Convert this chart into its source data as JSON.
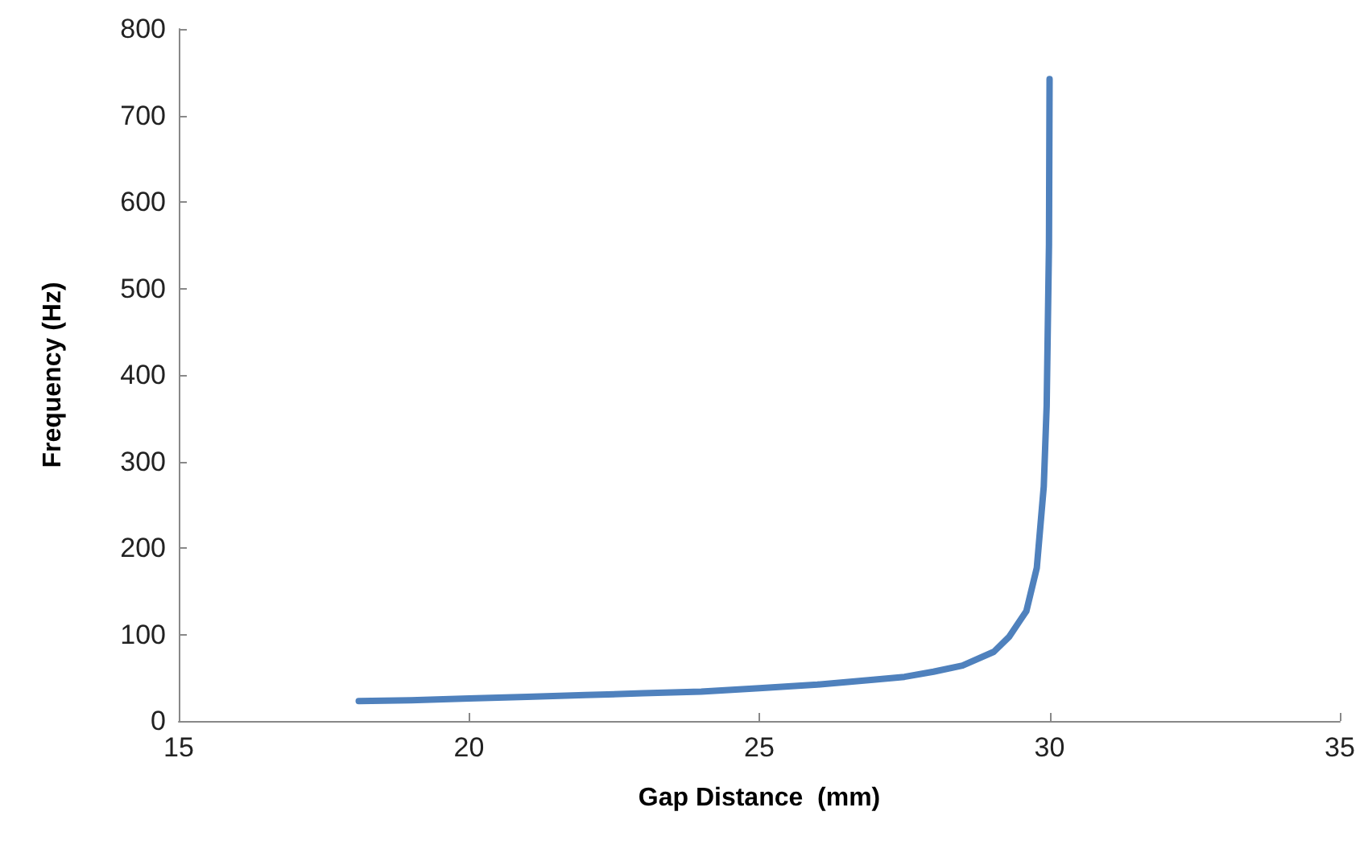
{
  "chart_data": {
    "type": "line",
    "xlabel": "Gap Distance  (mm)",
    "ylabel": "Frequency (Hz)",
    "x": [
      18.1,
      19,
      20,
      21,
      22,
      23,
      24,
      25,
      26,
      27,
      27.5,
      28,
      28.5,
      29.04,
      29.3,
      29.6,
      29.78,
      29.9,
      29.95,
      29.99,
      30
    ],
    "series": [
      {
        "color": "#4f81bd",
        "values": [
          23,
          24,
          26,
          28,
          30,
          32,
          34,
          38,
          42,
          48,
          51,
          57,
          64,
          80,
          97,
          127,
          177,
          271,
          364,
          551,
          742
        ]
      }
    ],
    "xlim": [
      15,
      35
    ],
    "xticks": [
      15,
      20,
      25,
      30,
      35
    ],
    "ylim": [
      0,
      800
    ],
    "yticks": [
      0,
      100,
      200,
      300,
      400,
      500,
      600,
      700,
      800
    ],
    "grid": false,
    "marker": "none",
    "line_style": "solid"
  }
}
